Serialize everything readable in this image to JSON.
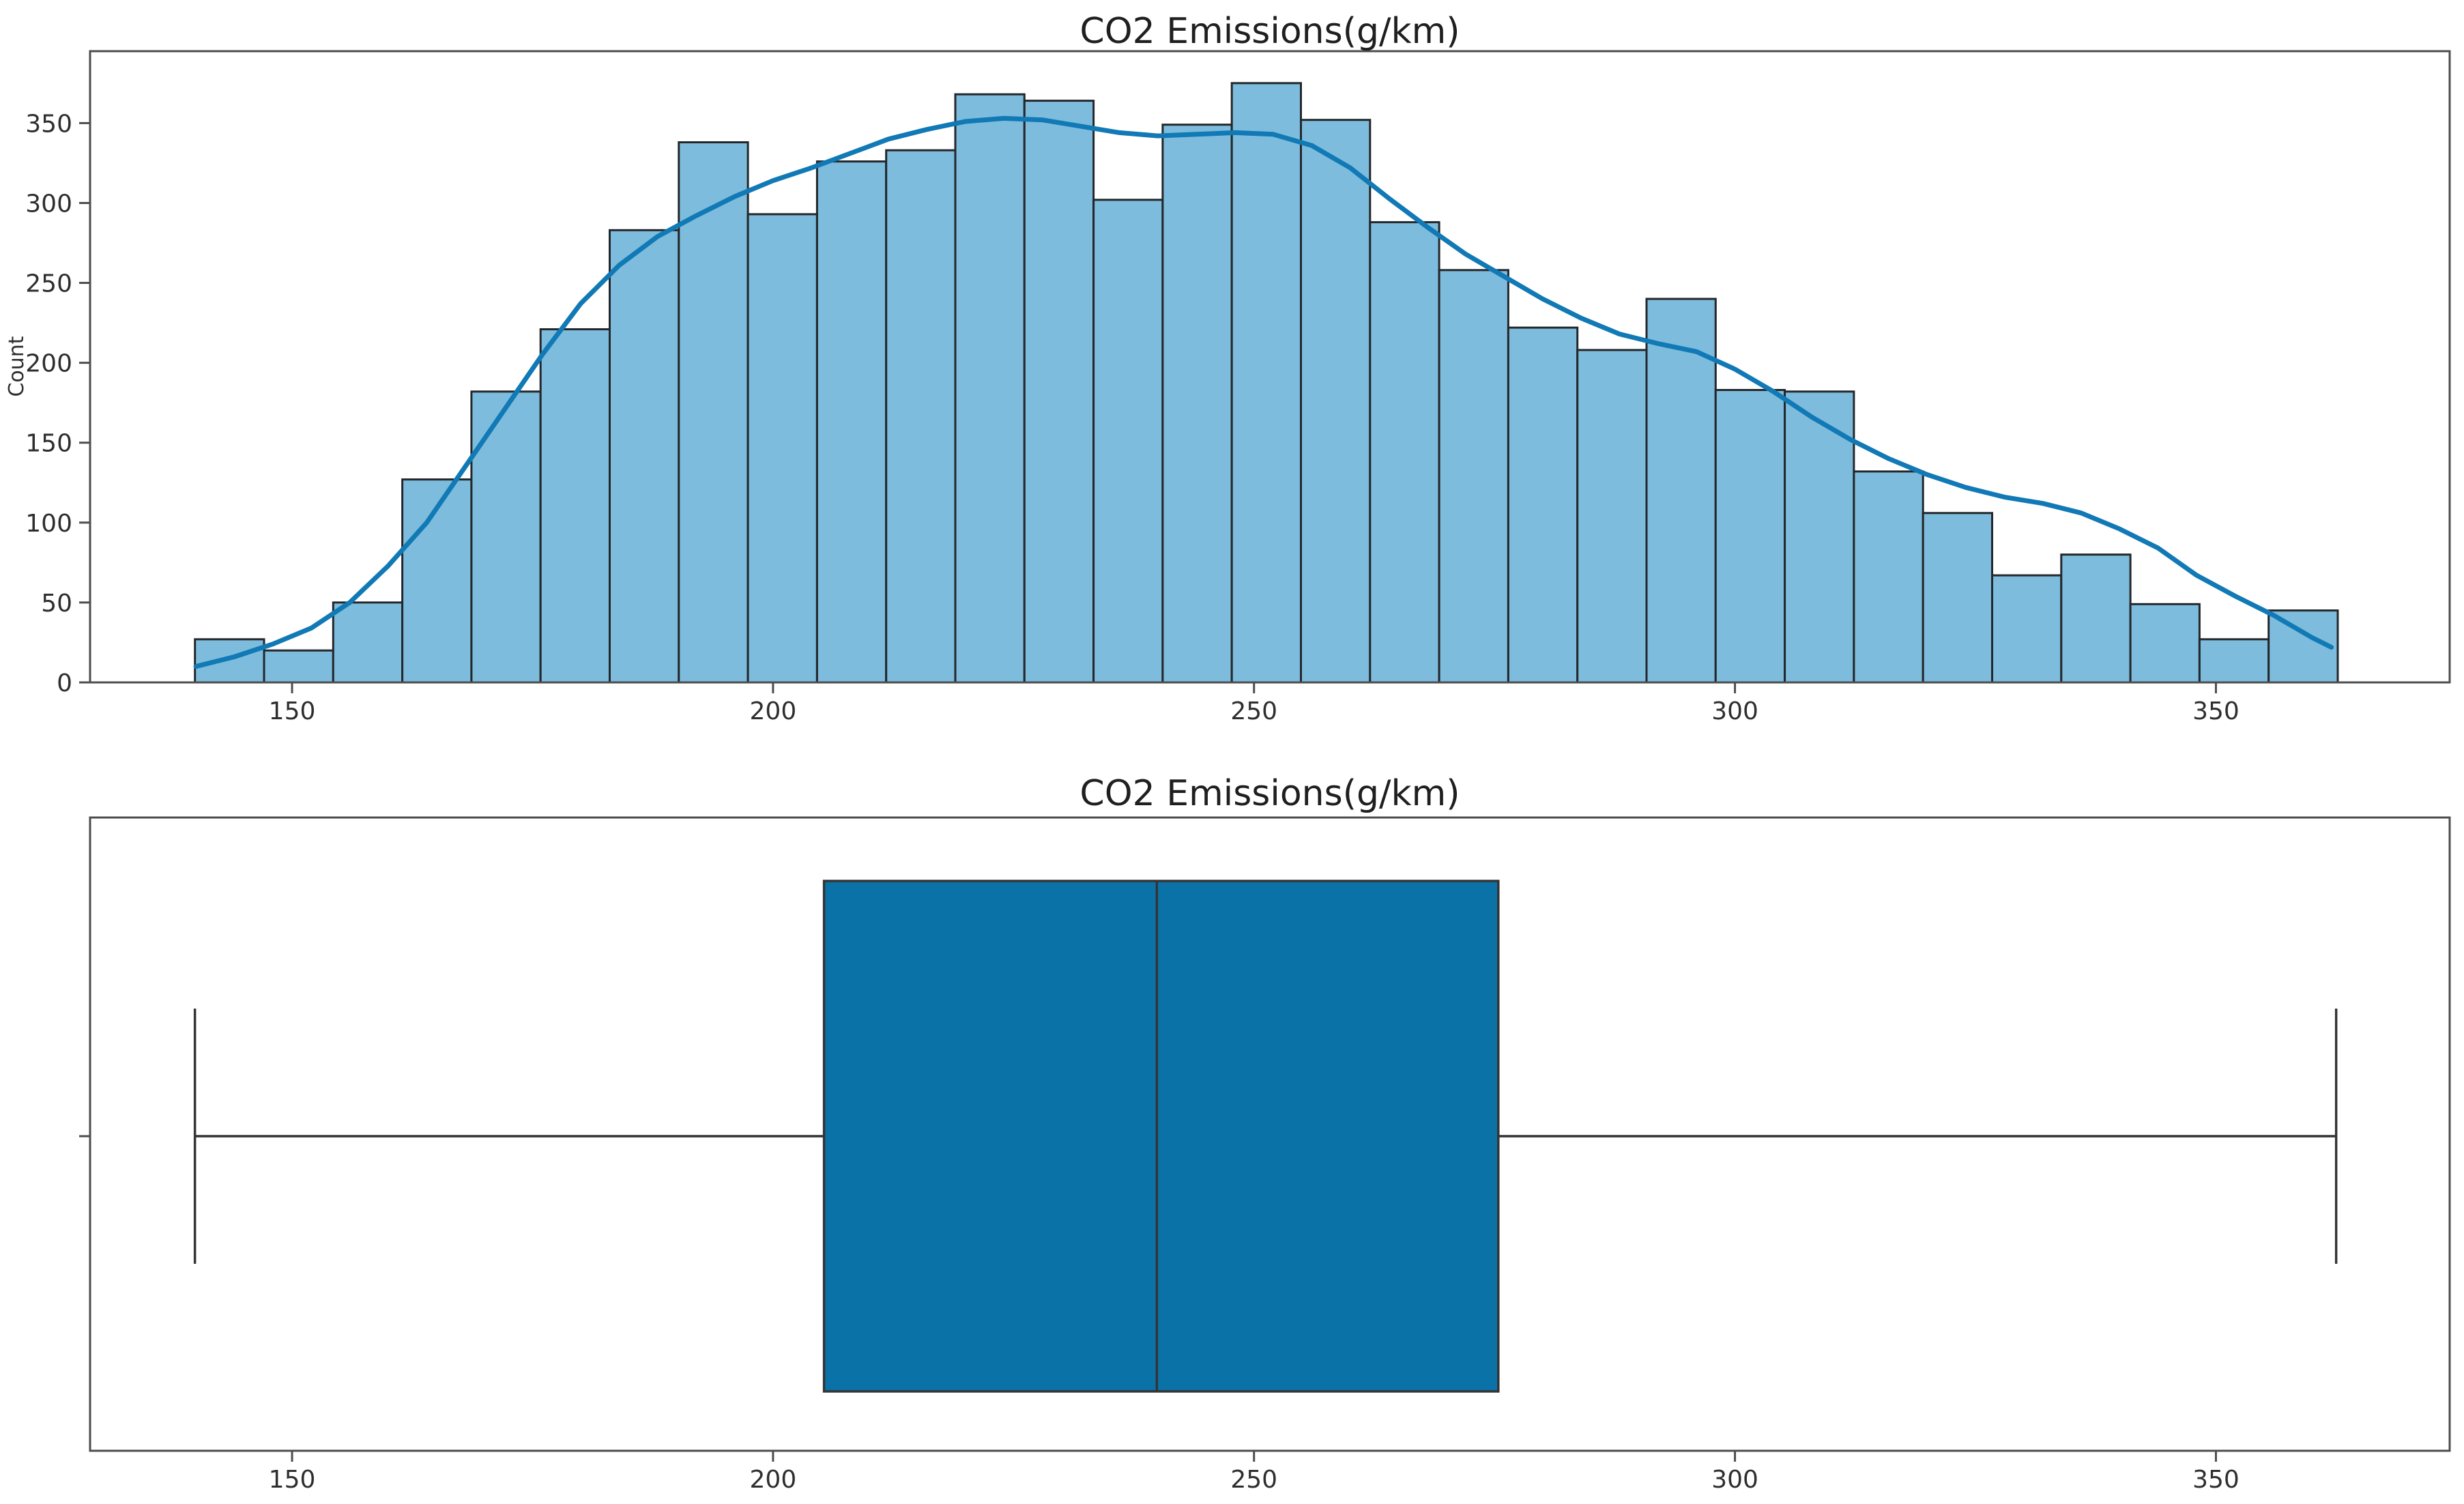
{
  "figure": {
    "background": "#ffffff"
  },
  "chart_data": [
    {
      "type": "bar",
      "subtype": "histogram_with_kde",
      "title": "CO2 Emissions(g/km)",
      "xlabel": "",
      "ylabel": "Count",
      "bin_start": 139.9,
      "bin_width": 7.186,
      "values": [
        27,
        20,
        50,
        127,
        182,
        221,
        283,
        338,
        293,
        326,
        333,
        368,
        364,
        302,
        349,
        375,
        352,
        288,
        258,
        222,
        208,
        240,
        183,
        182,
        132,
        106,
        67,
        80,
        49,
        27,
        45
      ],
      "kde_x": [
        140,
        144,
        148,
        152,
        156,
        160,
        164,
        168,
        172,
        176,
        180,
        184,
        188,
        192,
        196,
        200,
        204,
        208,
        212,
        216,
        220,
        224,
        228,
        232,
        236,
        240,
        244,
        248,
        252,
        256,
        260,
        264,
        268,
        272,
        276,
        280,
        284,
        288,
        292,
        296,
        300,
        304,
        308,
        312,
        316,
        320,
        324,
        328,
        332,
        336,
        340,
        344,
        348,
        352,
        356,
        360,
        362
      ],
      "kde_y": [
        10,
        16,
        24,
        34,
        50,
        73,
        100,
        135,
        170,
        205,
        237,
        261,
        279,
        292,
        304,
        314,
        322,
        331,
        340,
        346,
        351,
        353,
        352,
        348,
        344,
        342,
        343,
        344,
        343,
        336,
        322,
        303,
        285,
        268,
        254,
        240,
        228,
        218,
        212,
        207,
        196,
        182,
        166,
        152,
        140,
        130,
        122,
        116,
        112,
        106,
        96,
        84,
        67,
        54,
        42,
        28,
        22
      ],
      "xticks": [
        150,
        200,
        250,
        300,
        350
      ],
      "yticks": [
        0,
        50,
        100,
        150,
        200,
        250,
        300,
        350
      ],
      "xlim": [
        129,
        374.3
      ],
      "ylim": [
        0,
        395
      ],
      "grid": false,
      "legend": "none",
      "colors": {
        "bar_fill": "#7dbcdc",
        "bar_edge": "#23272b",
        "kde_line": "#1179b5",
        "spine": "#4d4d4d",
        "tick_label": "#2e2e2e",
        "title": "#1f1f1f"
      }
    },
    {
      "type": "boxplot",
      "title": "CO2 Emissions(g/km)",
      "orientation": "horizontal",
      "whisker_low": 139.9,
      "q1": 205.3,
      "median": 239.9,
      "q3": 275.4,
      "whisker_high": 362.5,
      "xticks": [
        150,
        200,
        250,
        300,
        350
      ],
      "xlim": [
        129,
        374.3
      ],
      "grid": false,
      "colors": {
        "box_fill": "#0b72a8",
        "line": "#343434",
        "spine": "#4d4d4d",
        "tick_label": "#2e2e2e",
        "title": "#1f1f1f"
      }
    }
  ]
}
